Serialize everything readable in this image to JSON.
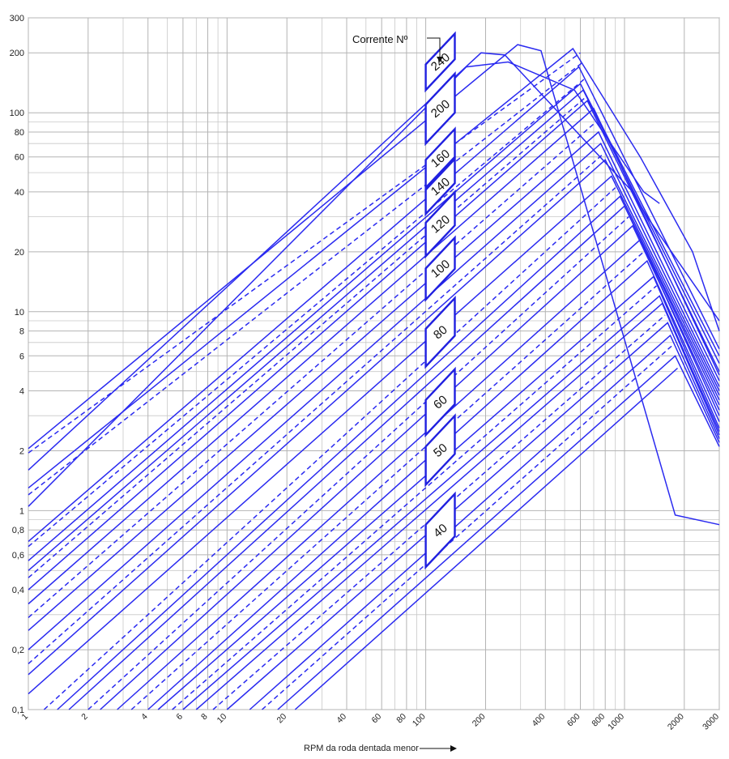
{
  "chart_data": {
    "type": "line",
    "title": "",
    "xlabel": "RPM da roda dentada menor",
    "ylabel": "",
    "xscale": "log",
    "yscale": "log",
    "xlim": [
      1,
      3000
    ],
    "ylim": [
      0.1,
      300
    ],
    "grid": true,
    "x_ticks": [
      {
        "v": 1,
        "label": "1"
      },
      {
        "v": 2,
        "label": "2"
      },
      {
        "v": 4,
        "label": "4"
      },
      {
        "v": 6,
        "label": "6"
      },
      {
        "v": 8,
        "label": "8"
      },
      {
        "v": 10,
        "label": "10"
      },
      {
        "v": 20,
        "label": "20"
      },
      {
        "v": 40,
        "label": "40"
      },
      {
        "v": 60,
        "label": "60"
      },
      {
        "v": 80,
        "label": "80"
      },
      {
        "v": 100,
        "label": "100"
      },
      {
        "v": 200,
        "label": "200"
      },
      {
        "v": 400,
        "label": "400"
      },
      {
        "v": 600,
        "label": "600"
      },
      {
        "v": 800,
        "label": "800"
      },
      {
        "v": 1000,
        "label": "1000"
      },
      {
        "v": 2000,
        "label": "2000"
      },
      {
        "v": 3000,
        "label": "3000"
      }
    ],
    "y_ticks": [
      {
        "v": 0.1,
        "label": "0,1"
      },
      {
        "v": 0.2,
        "label": "0,2"
      },
      {
        "v": 0.4,
        "label": "0,4"
      },
      {
        "v": 0.6,
        "label": "0,6"
      },
      {
        "v": 0.8,
        "label": "0,8"
      },
      {
        "v": 1,
        "label": "1"
      },
      {
        "v": 2,
        "label": "2"
      },
      {
        "v": 4,
        "label": "4"
      },
      {
        "v": 6,
        "label": "6"
      },
      {
        "v": 8,
        "label": "8"
      },
      {
        "v": 10,
        "label": "10"
      },
      {
        "v": 20,
        "label": "20"
      },
      {
        "v": 40,
        "label": "40"
      },
      {
        "v": 60,
        "label": "60"
      },
      {
        "v": 80,
        "label": "80"
      },
      {
        "v": 100,
        "label": "100"
      },
      {
        "v": 200,
        "label": "200"
      },
      {
        "v": 300,
        "label": "300"
      }
    ],
    "x_minor": [
      3,
      5,
      7,
      9,
      30,
      50,
      70,
      90,
      300,
      500,
      700,
      900
    ],
    "y_minor": [
      0.3,
      0.5,
      0.7,
      0.9,
      3,
      5,
      7,
      9,
      30,
      50,
      70,
      90
    ],
    "annotation": "Corrente Nº",
    "chain_labels": [
      {
        "label": "240",
        "y_low": 130,
        "y_high": 175
      },
      {
        "label": "200",
        "y_low": 70,
        "y_high": 110
      },
      {
        "label": "160",
        "y_low": 42,
        "y_high": 58
      },
      {
        "label": "140",
        "y_low": 31,
        "y_high": 41
      },
      {
        "label": "120",
        "y_low": 19,
        "y_high": 28
      },
      {
        "label": "100",
        "y_low": 11.5,
        "y_high": 16.5
      },
      {
        "label": "80",
        "y_low": 5.3,
        "y_high": 8.2
      },
      {
        "label": "60",
        "y_low": 2.4,
        "y_high": 3.6
      },
      {
        "label": "50",
        "y_low": 1.35,
        "y_high": 2.1
      },
      {
        "label": "40",
        "y_low": 0.52,
        "y_high": 0.85
      }
    ],
    "series": [
      {
        "style": "solid",
        "points": [
          [
            1,
            2.05
          ],
          [
            290,
            220
          ],
          [
            380,
            205
          ],
          [
            1800,
            0.95
          ],
          [
            3000,
            0.85
          ]
        ]
      },
      {
        "style": "dashed",
        "points": [
          [
            1,
            1.95
          ],
          [
            600,
            200
          ]
        ]
      },
      {
        "style": "solid",
        "points": [
          [
            1,
            1.6
          ],
          [
            190,
            200
          ],
          [
            250,
            195
          ],
          [
            1100,
            40
          ],
          [
            1300,
            30
          ],
          [
            3000,
            9
          ]
        ]
      },
      {
        "style": "solid",
        "points": [
          [
            1,
            1.3
          ],
          [
            550,
            210
          ],
          [
            1200,
            60
          ],
          [
            1500,
            40
          ],
          [
            2200,
            20
          ],
          [
            3000,
            8
          ]
        ]
      },
      {
        "style": "dashed",
        "points": [
          [
            1,
            1.2
          ],
          [
            620,
            180
          ]
        ]
      },
      {
        "style": "solid",
        "points": [
          [
            1,
            1.05
          ],
          [
            160,
            170
          ],
          [
            260,
            180
          ],
          [
            560,
            130
          ],
          [
            1250,
            40
          ],
          [
            1500,
            35
          ]
        ]
      },
      {
        "style": "solid",
        "points": [
          [
            1,
            0.7
          ],
          [
            590,
            170
          ],
          [
            3000,
            6.5
          ]
        ]
      },
      {
        "style": "dashed",
        "points": [
          [
            1,
            0.66
          ],
          [
            640,
            150
          ]
        ]
      },
      {
        "style": "solid",
        "points": [
          [
            1,
            0.56
          ],
          [
            600,
            140
          ],
          [
            3000,
            6
          ]
        ]
      },
      {
        "style": "solid",
        "points": [
          [
            1,
            0.5
          ],
          [
            620,
            130
          ],
          [
            3000,
            5.5
          ]
        ]
      },
      {
        "style": "dashed",
        "points": [
          [
            1,
            0.46
          ],
          [
            640,
            120
          ]
        ]
      },
      {
        "style": "solid",
        "points": [
          [
            1,
            0.4
          ],
          [
            650,
            115
          ],
          [
            3000,
            5
          ]
        ]
      },
      {
        "style": "solid",
        "points": [
          [
            1,
            0.34
          ],
          [
            700,
            105
          ],
          [
            3000,
            4.8
          ]
        ]
      },
      {
        "style": "dashed",
        "points": [
          [
            1,
            0.29
          ],
          [
            720,
            90
          ]
        ]
      },
      {
        "style": "solid",
        "points": [
          [
            1,
            0.25
          ],
          [
            740,
            80
          ],
          [
            3000,
            4.5
          ]
        ]
      },
      {
        "style": "solid",
        "points": [
          [
            1,
            0.2
          ],
          [
            760,
            70
          ],
          [
            3000,
            4.2
          ]
        ]
      },
      {
        "style": "dashed",
        "points": [
          [
            1,
            0.17
          ],
          [
            780,
            62
          ]
        ]
      },
      {
        "style": "solid",
        "points": [
          [
            1,
            0.15
          ],
          [
            800,
            58
          ],
          [
            3000,
            4
          ]
        ]
      },
      {
        "style": "solid",
        "points": [
          [
            1,
            0.12
          ],
          [
            860,
            48
          ],
          [
            3000,
            3.8
          ]
        ]
      },
      {
        "style": "dashed",
        "points": [
          [
            1.2,
            0.1
          ],
          [
            900,
            42
          ]
        ]
      },
      {
        "style": "solid",
        "points": [
          [
            1.4,
            0.1
          ],
          [
            950,
            38
          ],
          [
            3000,
            3.6
          ]
        ]
      },
      {
        "style": "solid",
        "points": [
          [
            1.6,
            0.1
          ],
          [
            1000,
            34
          ],
          [
            3000,
            3.4
          ]
        ]
      },
      {
        "style": "dashed",
        "points": [
          [
            2,
            0.1
          ],
          [
            1050,
            30
          ]
        ]
      },
      {
        "style": "solid",
        "points": [
          [
            2.3,
            0.1
          ],
          [
            1100,
            27
          ],
          [
            3000,
            3.2
          ]
        ]
      },
      {
        "style": "solid",
        "points": [
          [
            2.8,
            0.1
          ],
          [
            1200,
            23
          ],
          [
            3000,
            3
          ]
        ]
      },
      {
        "style": "dashed",
        "points": [
          [
            3.3,
            0.1
          ],
          [
            1250,
            20
          ]
        ]
      },
      {
        "style": "solid",
        "points": [
          [
            4,
            0.1
          ],
          [
            1300,
            18
          ],
          [
            3000,
            2.8
          ]
        ]
      },
      {
        "style": "solid",
        "points": [
          [
            4.5,
            0.1
          ],
          [
            1400,
            15
          ],
          [
            3000,
            2.6
          ]
        ]
      },
      {
        "style": "dashed",
        "points": [
          [
            5.3,
            0.1
          ],
          [
            1450,
            13.5
          ]
        ]
      },
      {
        "style": "solid",
        "points": [
          [
            6,
            0.1
          ],
          [
            1500,
            12
          ],
          [
            3000,
            2.5
          ]
        ]
      },
      {
        "style": "solid",
        "points": [
          [
            7,
            0.1
          ],
          [
            1550,
            11
          ],
          [
            3000,
            2.4
          ]
        ]
      },
      {
        "style": "dashed",
        "points": [
          [
            8.5,
            0.1
          ],
          [
            1600,
            9.6
          ]
        ]
      },
      {
        "style": "solid",
        "points": [
          [
            10,
            0.1
          ],
          [
            1650,
            8.8
          ],
          [
            3000,
            2.3
          ]
        ]
      },
      {
        "style": "solid",
        "points": [
          [
            13,
            0.1
          ],
          [
            1700,
            7.6
          ],
          [
            3000,
            2.2
          ]
        ]
      },
      {
        "style": "dashed",
        "points": [
          [
            15,
            0.1
          ],
          [
            1750,
            6.8
          ]
        ]
      },
      {
        "style": "solid",
        "points": [
          [
            18,
            0.1
          ],
          [
            1800,
            6
          ],
          [
            3000,
            2.1
          ]
        ]
      },
      {
        "style": "solid",
        "points": [
          [
            22,
            0.1
          ],
          [
            1850,
            5.2
          ]
        ]
      }
    ]
  }
}
